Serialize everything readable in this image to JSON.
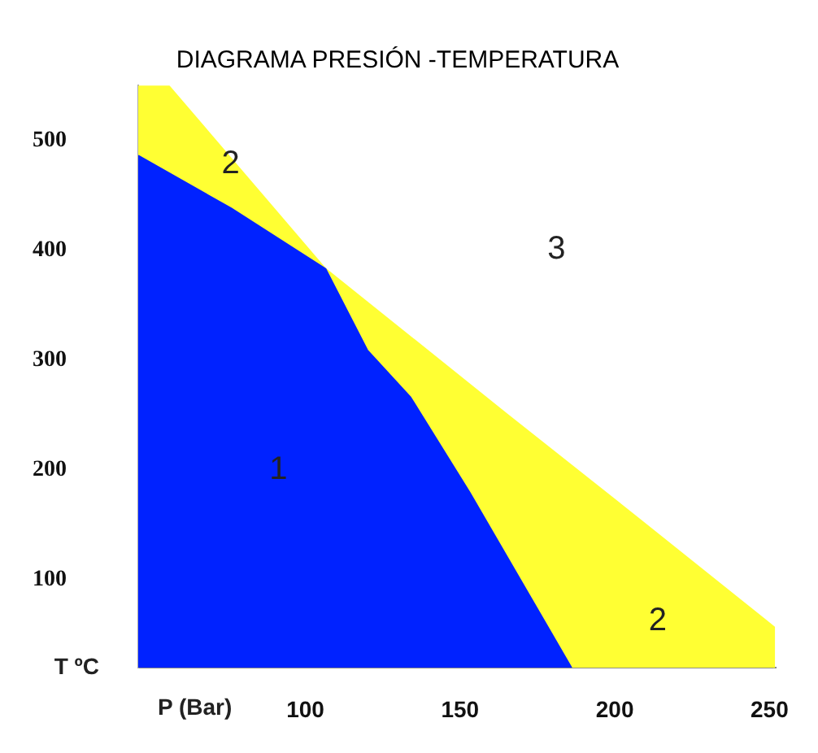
{
  "chart_data": {
    "type": "area",
    "title": "DIAGRAMA PRESIÓN -TEMPERATURA",
    "xlabel": "P (Bar)",
    "ylabel": "T ºC",
    "xlim": [
      46,
      252
    ],
    "ylim": [
      20,
      550
    ],
    "xticks": [
      100,
      150,
      200,
      250
    ],
    "yticks": [
      100,
      200,
      300,
      400,
      500
    ],
    "grid": false,
    "legend": false,
    "series": [
      {
        "color": "#ffff33",
        "x": [
          46,
          56,
          106.5,
          165,
          208,
          251.5,
          251.5
        ],
        "values": [
          549,
          549,
          383,
          251,
          155,
          57,
          20
        ]
      },
      {
        "color": "#0022ff",
        "x": [
          46,
          76,
          106.5,
          120,
          134,
          153,
          186
        ],
        "values": [
          486,
          438,
          383,
          309,
          266,
          180,
          20
        ]
      }
    ],
    "annotations": [
      "1",
      "2",
      "3",
      "2"
    ]
  }
}
